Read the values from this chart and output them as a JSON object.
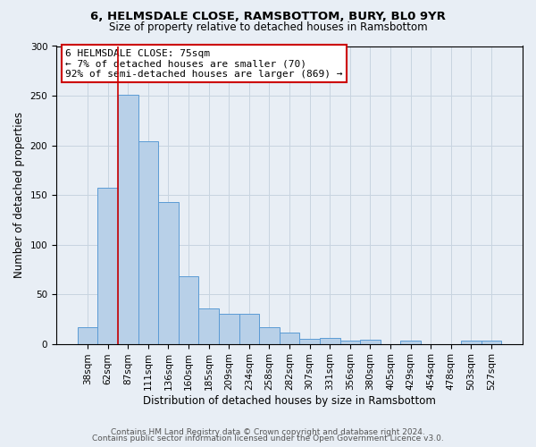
{
  "title1": "6, HELMSDALE CLOSE, RAMSBOTTOM, BURY, BL0 9YR",
  "title2": "Size of property relative to detached houses in Ramsbottom",
  "xlabel": "Distribution of detached houses by size in Ramsbottom",
  "ylabel": "Number of detached properties",
  "footer1": "Contains HM Land Registry data © Crown copyright and database right 2024.",
  "footer2": "Contains public sector information licensed under the Open Government Licence v3.0.",
  "bin_labels": [
    "38sqm",
    "62sqm",
    "87sqm",
    "111sqm",
    "136sqm",
    "160sqm",
    "185sqm",
    "209sqm",
    "234sqm",
    "258sqm",
    "282sqm",
    "307sqm",
    "331sqm",
    "356sqm",
    "380sqm",
    "405sqm",
    "429sqm",
    "454sqm",
    "478sqm",
    "503sqm",
    "527sqm"
  ],
  "bar_values": [
    17,
    157,
    251,
    204,
    143,
    68,
    36,
    30,
    30,
    17,
    11,
    5,
    6,
    3,
    4,
    0,
    3,
    0,
    0,
    3,
    3
  ],
  "bar_color": "#b8d0e8",
  "bar_edge_color": "#5b9bd5",
  "grid_color": "#c8d4e0",
  "bg_color": "#e8eef5",
  "vline_x_index": 1.5,
  "vline_color": "#cc0000",
  "annotation_text": "6 HELMSDALE CLOSE: 75sqm\n← 7% of detached houses are smaller (70)\n92% of semi-detached houses are larger (869) →",
  "annotation_box_color": "#ffffff",
  "annotation_box_edge_color": "#cc0000",
  "ylim": [
    0,
    300
  ],
  "yticks": [
    0,
    50,
    100,
    150,
    200,
    250,
    300
  ],
  "title1_fontsize": 9.5,
  "title2_fontsize": 8.5,
  "ylabel_fontsize": 8.5,
  "xlabel_fontsize": 8.5,
  "tick_fontsize": 7.5,
  "annot_fontsize": 8.0,
  "footer_fontsize": 6.5
}
